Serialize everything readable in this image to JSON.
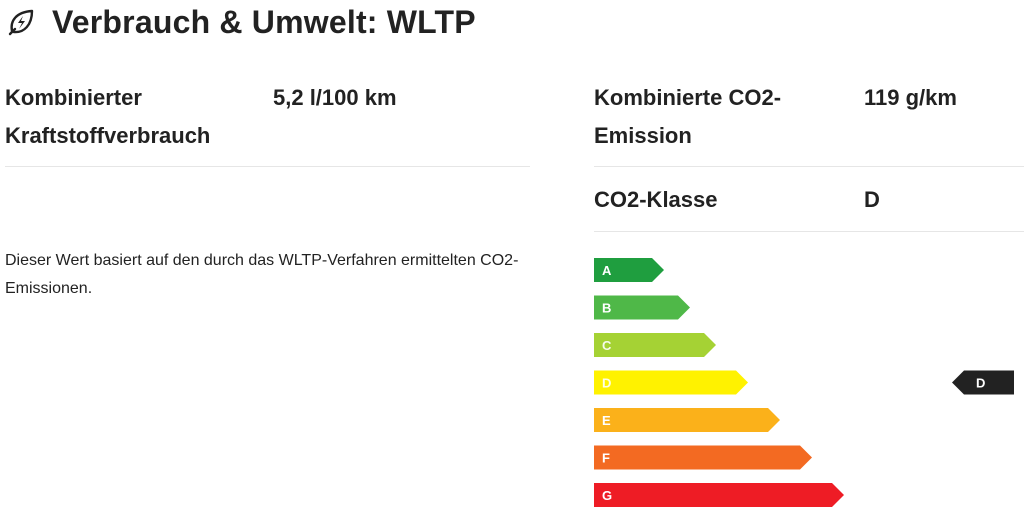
{
  "header": {
    "title": "Verbrauch & Umwelt: WLTP",
    "icon": "leaf-lightning-icon"
  },
  "specs": {
    "fuel_label": "Kombinierter Kraftstoffverbrauch",
    "fuel_value": "5,2 l/100 km",
    "co2_label": "Kombinierte CO2-Emission",
    "co2_value": "119 g/km",
    "class_label": "CO2-Klasse",
    "class_value": "D"
  },
  "note": "Dieser Wert basiert auf den durch das WLTP-Verfahren ermittelten CO2-Emissionen.",
  "co2_scale": {
    "classes": [
      {
        "label": "A",
        "color": "#1f9e3f"
      },
      {
        "label": "B",
        "color": "#4fb848"
      },
      {
        "label": "C",
        "color": "#a5d234"
      },
      {
        "label": "D",
        "color": "#fff200"
      },
      {
        "label": "E",
        "color": "#fbb11a"
      },
      {
        "label": "F",
        "color": "#f36a22"
      },
      {
        "label": "G",
        "color": "#ee1c25"
      }
    ],
    "current_class": "D",
    "indicator_color": "#222222"
  }
}
